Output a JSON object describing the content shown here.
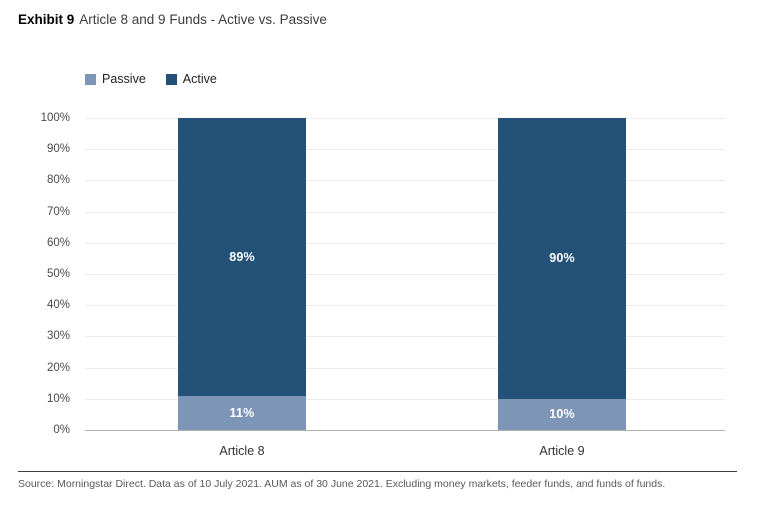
{
  "title": {
    "exhibit": "Exhibit 9",
    "text": "Article 8 and 9 Funds - Active vs. Passive"
  },
  "chart_data": {
    "type": "bar",
    "stacked": true,
    "title": "Article 8 and 9 Funds - Active vs. Passive",
    "categories": [
      "Article 8",
      "Article 9"
    ],
    "series": [
      {
        "name": "Passive",
        "color": "#7d96b8",
        "values": [
          11,
          10
        ],
        "labels": [
          "11%",
          "10%"
        ]
      },
      {
        "name": "Active",
        "color": "#235177",
        "values": [
          89,
          90
        ],
        "labels": [
          "89%",
          "90%"
        ]
      }
    ],
    "y_ticks": [
      "0%",
      "10%",
      "20%",
      "30%",
      "40%",
      "50%",
      "60%",
      "70%",
      "80%",
      "90%",
      "100%"
    ],
    "ylim": [
      0,
      100
    ],
    "grid": true,
    "legend_position": "top-left",
    "value_label_color": "#ffffff"
  },
  "footer": {
    "source": "Source: Morningstar Direct. Data as of 10 July 2021. AUM as of 30 June 2021. Excluding money markets, feeder funds, and funds of funds."
  }
}
